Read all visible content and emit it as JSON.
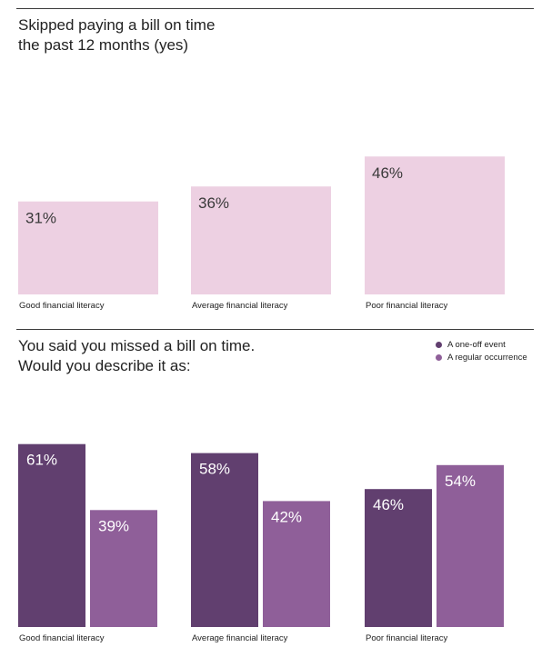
{
  "chart_data": [
    {
      "type": "bar",
      "title_lines": [
        "Skipped paying a bill on time",
        "the past 12 months (yes)"
      ],
      "categories": [
        "Good financial literacy",
        "Average financial literacy",
        "Poor financial literacy"
      ],
      "series": [
        {
          "values": [
            31,
            36,
            46
          ],
          "labels": [
            "31%",
            "36%",
            "46%"
          ],
          "color": "#edd0e2"
        }
      ],
      "ylim": [
        0,
        100
      ],
      "grid": false
    },
    {
      "type": "bar",
      "title_lines": [
        "You said you missed a bill on time.",
        "Would you describe it as:"
      ],
      "categories": [
        "Good financial literacy",
        "Average financial literacy",
        "Poor financial literacy"
      ],
      "series": [
        {
          "name": "A one-off event",
          "values": [
            61,
            58,
            46
          ],
          "labels": [
            "61%",
            "58%",
            "46%"
          ],
          "color": "#613f6f"
        },
        {
          "name": "A regular occurrence",
          "values": [
            39,
            42,
            54
          ],
          "labels": [
            "39%",
            "42%",
            "54%"
          ],
          "color": "#8f5f99"
        }
      ],
      "ylim": [
        0,
        100
      ],
      "grid": false,
      "legend_position": "top-right"
    }
  ],
  "text_color": "#222222",
  "label_color_on_light": "#3a3a3a",
  "label_color_on_dark": "#ffffff"
}
